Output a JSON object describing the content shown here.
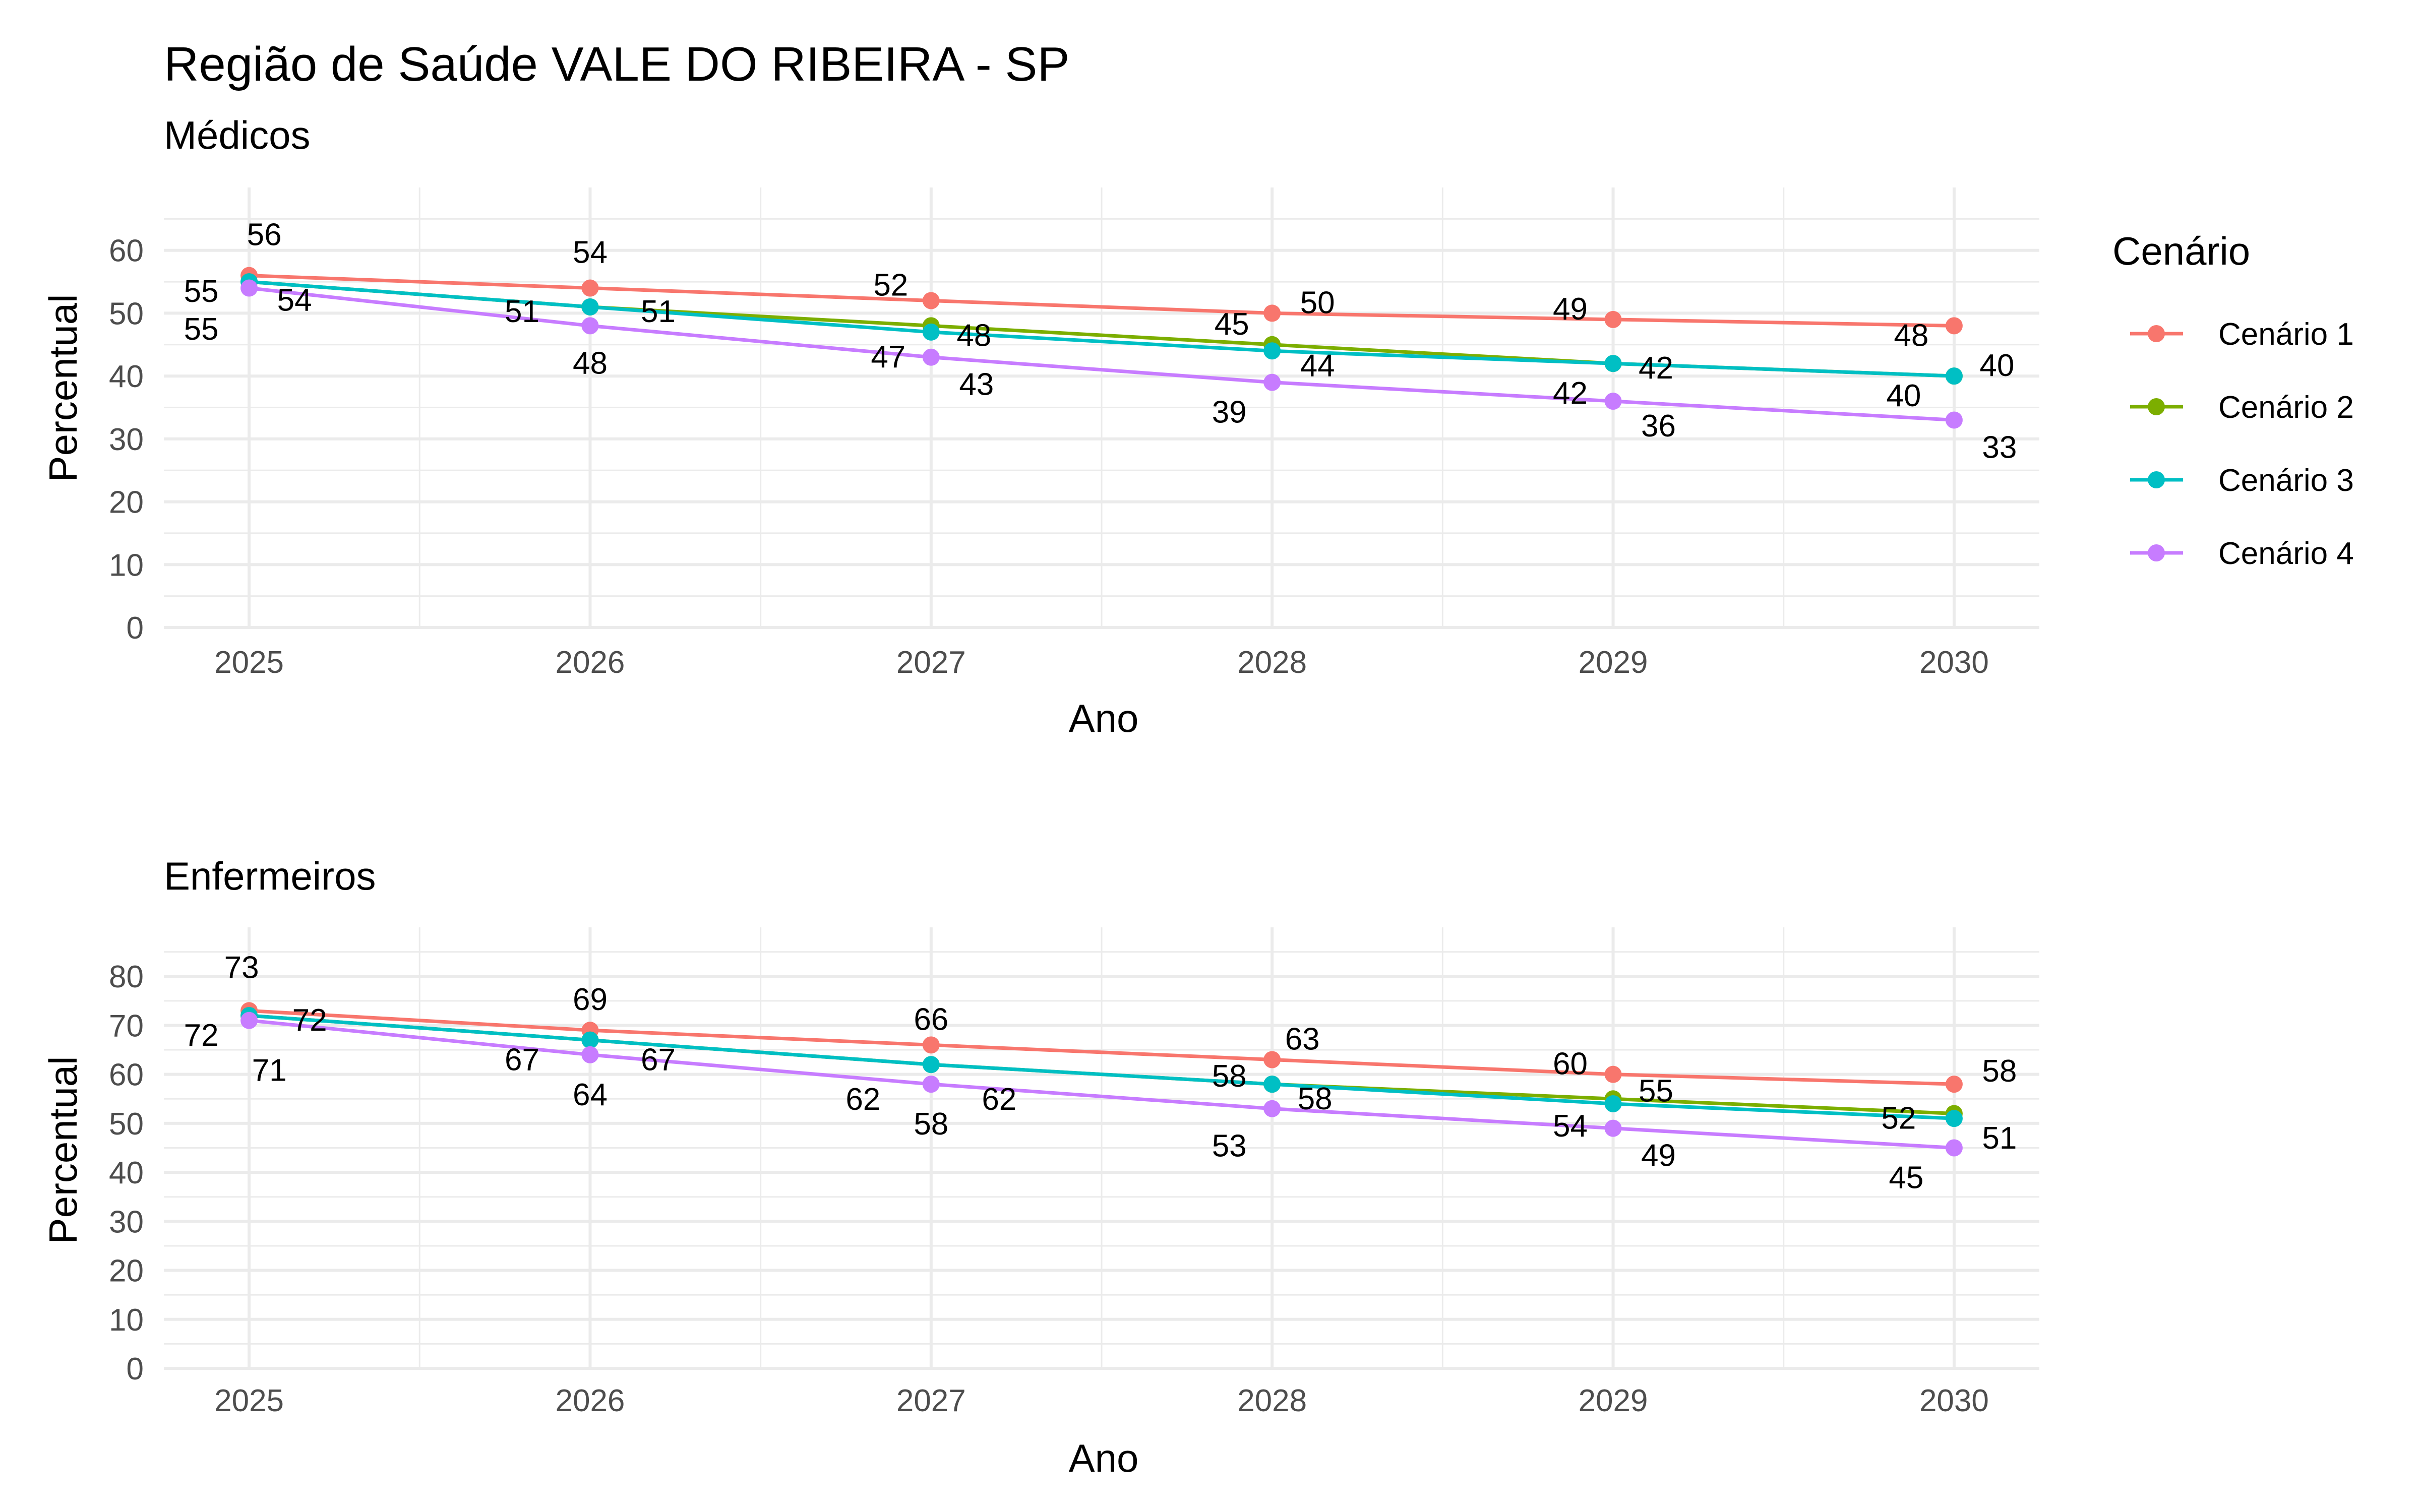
{
  "title": "Região de Saúde VALE DO RIBEIRA - SP",
  "legend": {
    "title": "Cenário",
    "items": [
      {
        "label": "Cenário 1",
        "color": "#F8766D"
      },
      {
        "label": "Cenário 2",
        "color": "#7CAE00"
      },
      {
        "label": "Cenário 3",
        "color": "#00BFC4"
      },
      {
        "label": "Cenário 4",
        "color": "#C77CFF"
      }
    ]
  },
  "chart_data": [
    {
      "type": "line",
      "subtitle": "Médicos",
      "xlabel": "Ano",
      "ylabel": "Percentual",
      "x": [
        "2025",
        "2026",
        "2027",
        "2028",
        "2029",
        "2030"
      ],
      "yticks": [
        "0",
        "10",
        "20",
        "30",
        "40",
        "50",
        "60"
      ],
      "ylim": [
        0,
        70
      ],
      "grid": true,
      "legend_position": "right",
      "series": [
        {
          "name": "Cenário 1",
          "color": "#F8766D",
          "values": [
            56,
            54,
            52,
            50,
            49,
            48
          ]
        },
        {
          "name": "Cenário 2",
          "color": "#7CAE00",
          "values": [
            55,
            51,
            48,
            45,
            42,
            40
          ]
        },
        {
          "name": "Cenário 3",
          "color": "#00BFC4",
          "values": [
            55,
            51,
            47,
            44,
            42,
            40
          ]
        },
        {
          "name": "Cenário 4",
          "color": "#C77CFF",
          "values": [
            54,
            48,
            43,
            39,
            36,
            33
          ]
        }
      ]
    },
    {
      "type": "line",
      "subtitle": "Enfermeiros",
      "xlabel": "Ano",
      "ylabel": "Percentual",
      "x": [
        "2025",
        "2026",
        "2027",
        "2028",
        "2029",
        "2030"
      ],
      "yticks": [
        "0",
        "10",
        "20",
        "30",
        "40",
        "50",
        "60",
        "70",
        "80"
      ],
      "ylim": [
        0,
        90
      ],
      "grid": true,
      "legend_position": "right",
      "series": [
        {
          "name": "Cenário 1",
          "color": "#F8766D",
          "values": [
            73,
            69,
            66,
            63,
            60,
            58
          ]
        },
        {
          "name": "Cenário 2",
          "color": "#7CAE00",
          "values": [
            72,
            67,
            62,
            58,
            55,
            52
          ]
        },
        {
          "name": "Cenário 3",
          "color": "#00BFC4",
          "values": [
            72,
            67,
            62,
            58,
            54,
            51
          ]
        },
        {
          "name": "Cenário 4",
          "color": "#C77CFF",
          "values": [
            71,
            64,
            58,
            53,
            49,
            45
          ]
        }
      ]
    }
  ]
}
